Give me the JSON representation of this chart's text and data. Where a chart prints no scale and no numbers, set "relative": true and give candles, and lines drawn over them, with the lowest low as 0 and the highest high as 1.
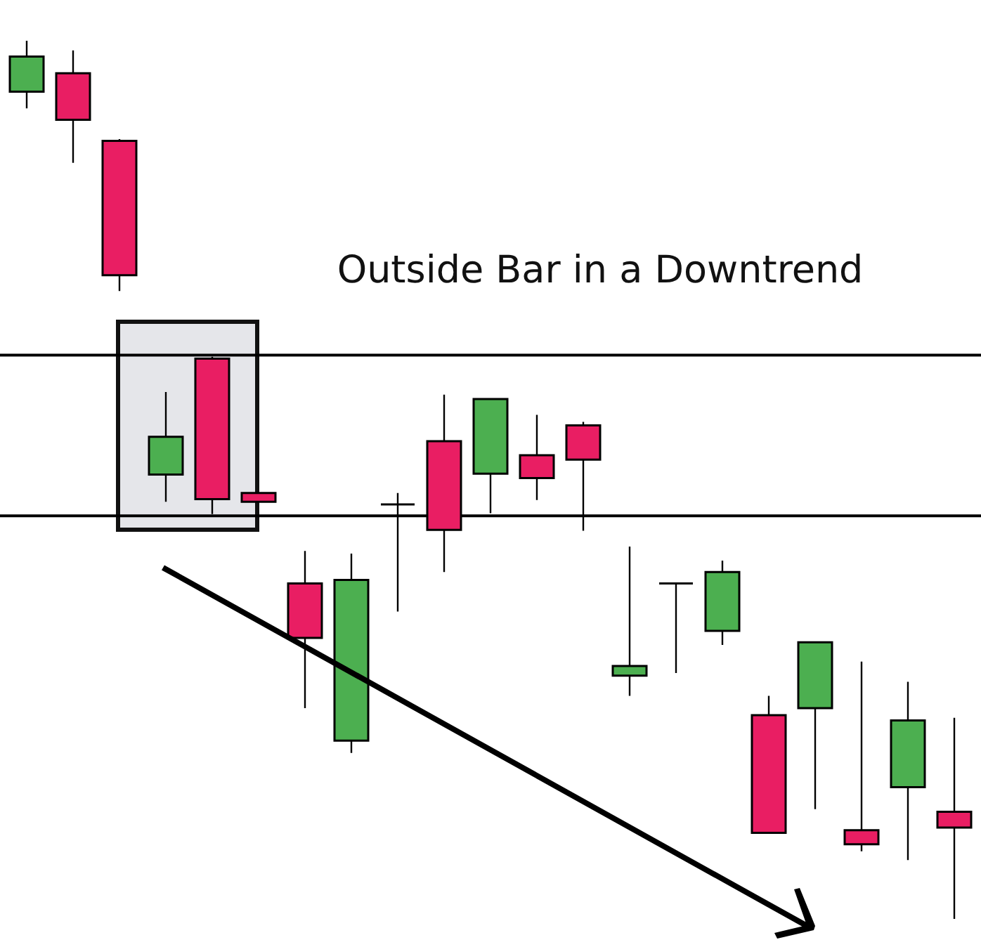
{
  "chart_data": {
    "type": "candlestick",
    "title": "Outside Bar in a   Downtrend",
    "relative": true,
    "categories": [
      null,
      null,
      null,
      null,
      null,
      null,
      null,
      null,
      null,
      null,
      null,
      null,
      null,
      null,
      null,
      null,
      null,
      null,
      null,
      null,
      null
    ],
    "ohlc": [
      [
        0.942,
        1,
        0.923,
        0.982
      ],
      [
        0.963,
        0.989,
        0.861,
        0.91
      ],
      [
        0.886,
        0.888,
        0.715,
        0.733
      ],
      [
        0.506,
        0.6,
        0.475,
        0.549
      ],
      [
        0.638,
        0.64,
        0.461,
        0.478
      ],
      [
        0.485,
        0.485,
        0.475,
        0.475
      ],
      [
        0.382,
        0.419,
        0.24,
        0.32
      ],
      [
        0.203,
        0.416,
        0.189,
        0.386
      ],
      [
        0.472,
        0.485,
        0.35,
        0.472
      ],
      [
        0.544,
        0.597,
        0.395,
        0.443
      ],
      [
        0.507,
        0.592,
        0.462,
        0.592
      ],
      [
        0.528,
        0.574,
        0.477,
        0.502
      ],
      [
        0.562,
        0.566,
        0.442,
        0.523
      ],
      [
        0.277,
        0.424,
        0.254,
        0.288
      ],
      [
        0.382,
        0.382,
        0.28,
        0.382
      ],
      [
        0.328,
        0.408,
        0.312,
        0.395
      ],
      [
        0.232,
        0.254,
        0.098,
        0.098
      ],
      [
        0.24,
        0.315,
        0.125,
        0.315
      ],
      [
        0.101,
        0.293,
        0.077,
        0.085
      ],
      [
        0.15,
        0.27,
        0.067,
        0.226
      ],
      [
        0.122,
        0.229,
        0,
        0.104
      ]
    ],
    "colors": [
      "#4caf50",
      "#e91e63",
      "#e91e63",
      "#4caf50",
      "#e91e63",
      "#e91e63",
      "#e91e63",
      "#4caf50",
      "#000000",
      "#e91e63",
      "#4caf50",
      "#e91e63",
      "#e91e63",
      "#4caf50",
      "#000000",
      "#4caf50",
      "#e91e63",
      "#4caf50",
      "#e91e63",
      "#4caf50",
      "#e91e63"
    ],
    "ref_lines": [
      {
        "axis": "y",
        "value": 0.642
      },
      {
        "axis": "y",
        "value": 0.459
      }
    ]
  }
}
